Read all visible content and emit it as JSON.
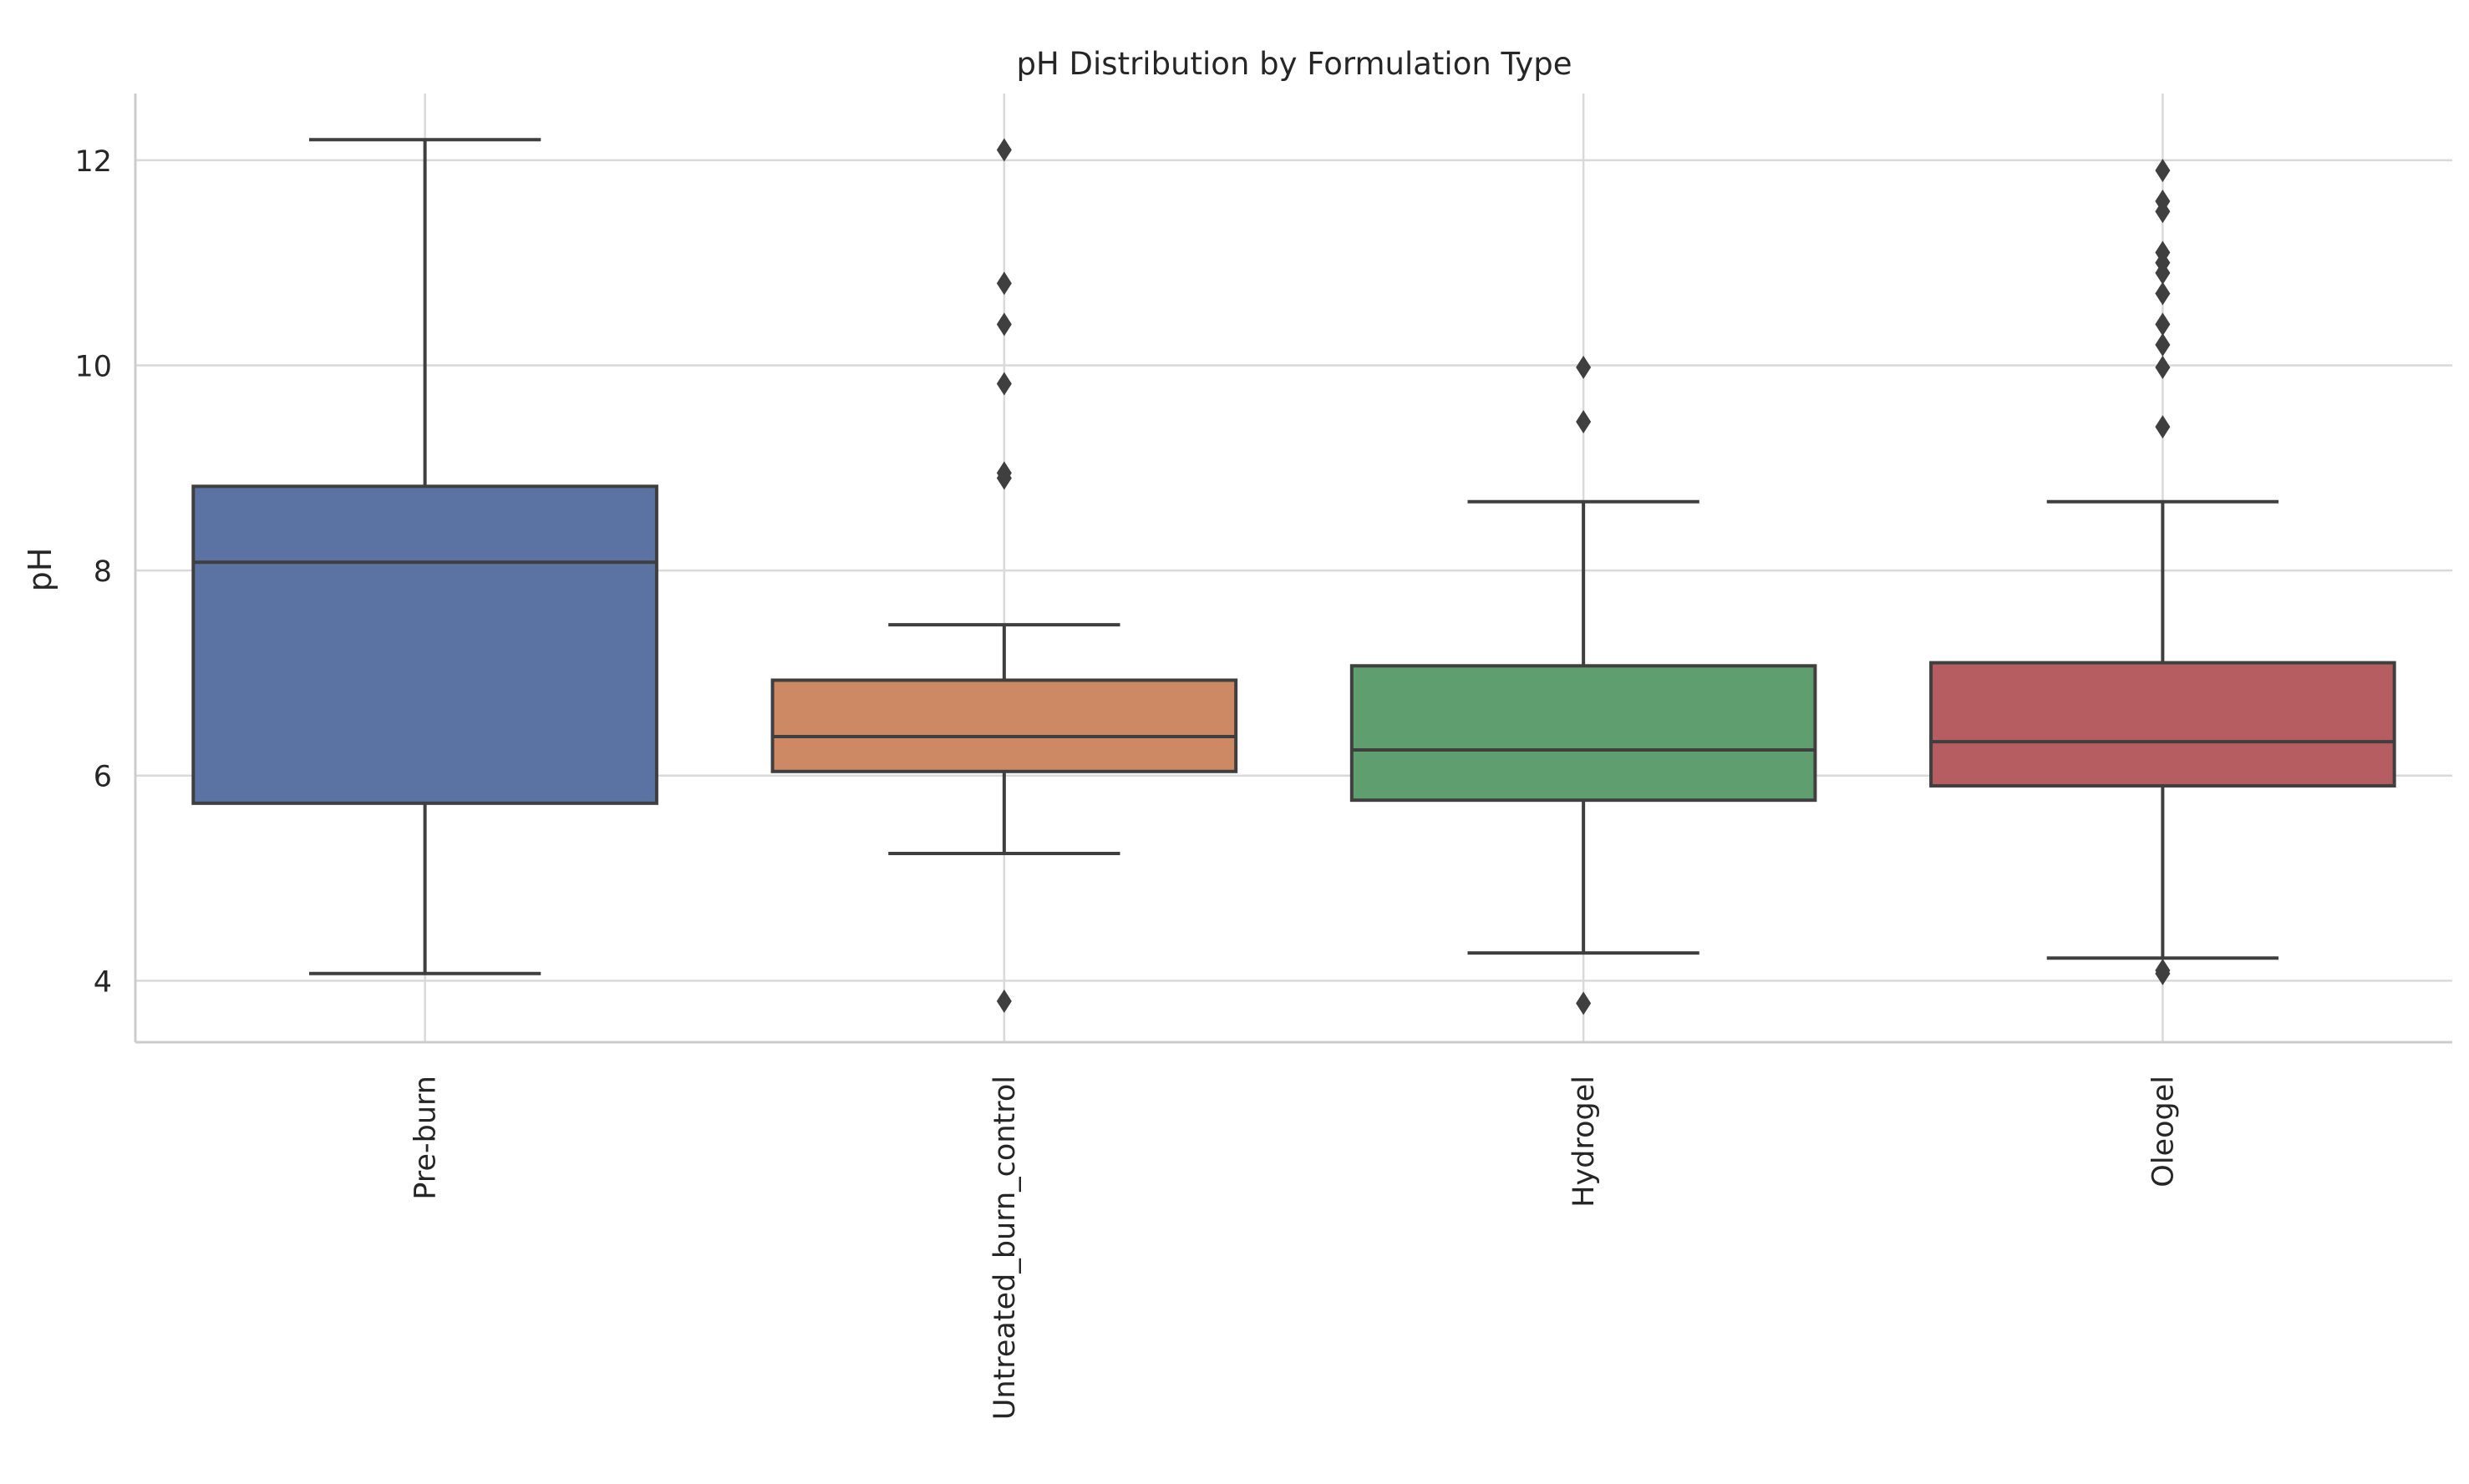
{
  "chart_data": {
    "type": "box",
    "title": "pH Distribution by Formulation Type",
    "xlabel": "",
    "ylabel": "pH",
    "ylim": [
      3.4,
      12.65
    ],
    "yticks": [
      4,
      6,
      8,
      10,
      12
    ],
    "grid": true,
    "legend": "none",
    "categories": [
      "Pre-burn",
      "Untreated_burn_control",
      "Hydrogel",
      "Oleogel"
    ],
    "boxes": [
      {
        "category": "Pre-burn",
        "color": "#5b73a3",
        "whisker_low": 4.07,
        "q1": 5.73,
        "median": 8.08,
        "q3": 8.82,
        "whisker_high": 12.2,
        "outliers": []
      },
      {
        "category": "Untreated_burn_control",
        "color": "#cc8963",
        "whisker_low": 5.24,
        "q1": 6.04,
        "median": 6.38,
        "q3": 6.93,
        "whisker_high": 7.47,
        "outliers": [
          3.8,
          8.9,
          8.95,
          9.82,
          10.4,
          10.8,
          12.1
        ]
      },
      {
        "category": "Hydrogel",
        "color": "#5f9e6e",
        "whisker_low": 4.27,
        "q1": 5.76,
        "median": 6.25,
        "q3": 7.07,
        "whisker_high": 8.67,
        "outliers": [
          3.78,
          9.45,
          9.98
        ]
      },
      {
        "category": "Oleogel",
        "color": "#b55d60",
        "whisker_low": 4.22,
        "q1": 5.9,
        "median": 6.33,
        "q3": 7.1,
        "whisker_high": 8.67,
        "outliers": [
          4.07,
          4.1,
          9.4,
          9.98,
          10.2,
          10.4,
          10.7,
          10.9,
          11.0,
          11.1,
          11.5,
          11.6,
          11.9
        ]
      }
    ]
  }
}
